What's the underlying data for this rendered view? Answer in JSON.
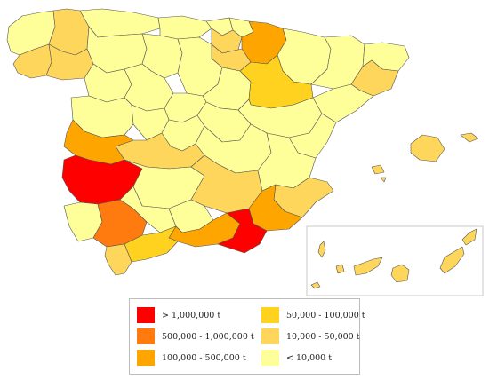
{
  "map": {
    "region": "Spain",
    "inset": "Canary Islands",
    "colors": {
      "c1": "#FF0000",
      "c2": "#FF7A0F",
      "c3": "#FFA500",
      "c4": "#FFD21F",
      "c5": "#FFD65C",
      "c6": "#FFFF99",
      "border": "#555555"
    }
  },
  "legend": {
    "items": [
      {
        "label": "> 1,000,000 t",
        "color": "#FF0000"
      },
      {
        "label": "500,000 - 1,000,000 t",
        "color": "#FF7A0F"
      },
      {
        "label": "100,000 - 500,000 t",
        "color": "#FFA500"
      },
      {
        "label": "50,000 - 100,000 t",
        "color": "#FFD21F"
      },
      {
        "label": "10,000 - 50,000 t",
        "color": "#FFD65C"
      },
      {
        "label": "< 10,000 t",
        "color": "#FFFF99"
      }
    ]
  }
}
